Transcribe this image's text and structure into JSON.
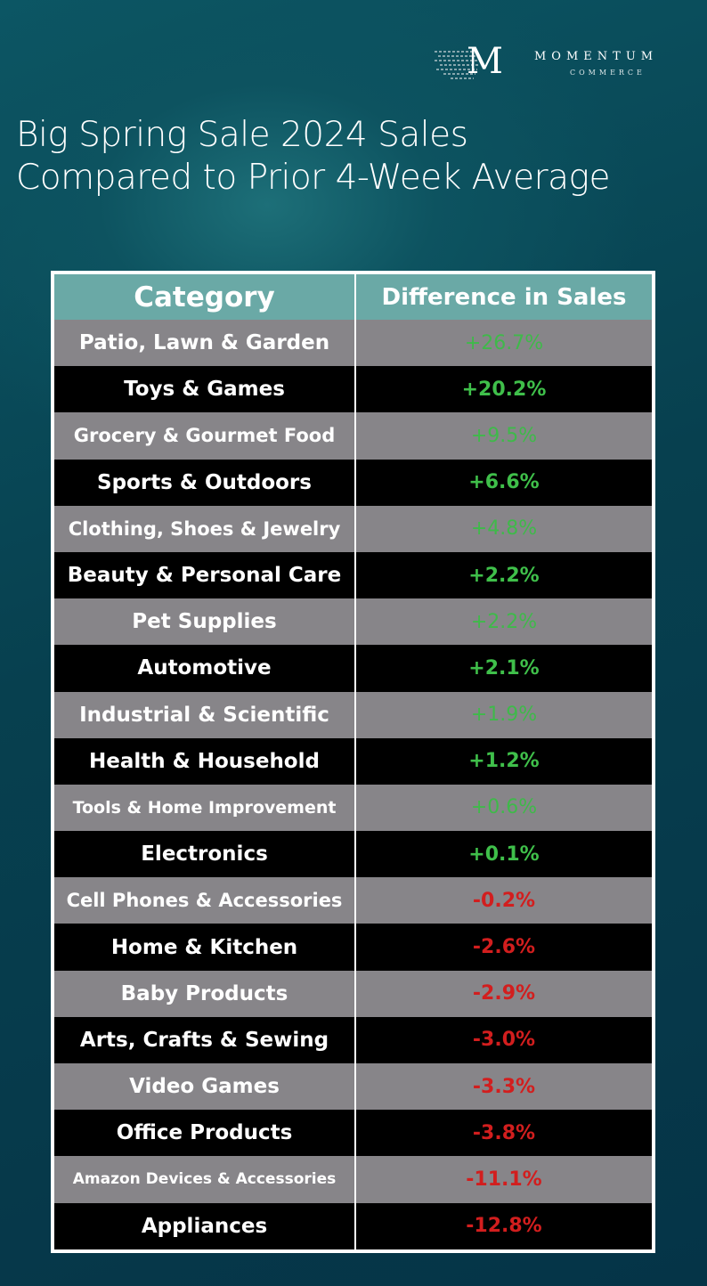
{
  "brand": {
    "name": "MOMENTUM",
    "sub": "COMMERCE",
    "mark": "M"
  },
  "title": [
    "Big Spring Sale 2024 Sales",
    "Compared to Prior 4-Week Average"
  ],
  "colors": {
    "header": "#6aa9a6",
    "row_alt": "#878589",
    "row": "#000000",
    "positive": "#3fbf4a",
    "negative": "#d21e1e"
  },
  "chart_data": {
    "type": "table",
    "title": "Big Spring Sale 2024 Sales Compared to Prior 4-Week Average",
    "columns": [
      "Category",
      "Difference in Sales"
    ],
    "rows": [
      [
        "Patio, Lawn & Garden",
        "+26.7%"
      ],
      [
        "Toys & Games",
        "+20.2%"
      ],
      [
        "Grocery & Gourmet Food",
        "+9.5%"
      ],
      [
        "Sports & Outdoors",
        "+6.6%"
      ],
      [
        "Clothing, Shoes & Jewelry",
        "+4.8%"
      ],
      [
        "Beauty & Personal Care",
        "+2.2%"
      ],
      [
        "Pet Supplies",
        "+2.2%"
      ],
      [
        "Automotive",
        "+2.1%"
      ],
      [
        "Industrial & Scientific",
        "+1.9%"
      ],
      [
        "Health & Household",
        "+1.2%"
      ],
      [
        "Tools & Home Improvement",
        "+0.6%"
      ],
      [
        "Electronics",
        "+0.1%"
      ],
      [
        "Cell Phones & Accessories",
        "-0.2%"
      ],
      [
        "Home & Kitchen",
        "-2.6%"
      ],
      [
        "Baby Products",
        "-2.9%"
      ],
      [
        "Arts, Crafts & Sewing",
        "-3.0%"
      ],
      [
        "Video Games",
        "-3.3%"
      ],
      [
        "Office Products",
        "-3.8%"
      ],
      [
        "Amazon Devices & Accessories",
        "-11.1%"
      ],
      [
        "Appliances",
        "-12.8%"
      ]
    ]
  }
}
